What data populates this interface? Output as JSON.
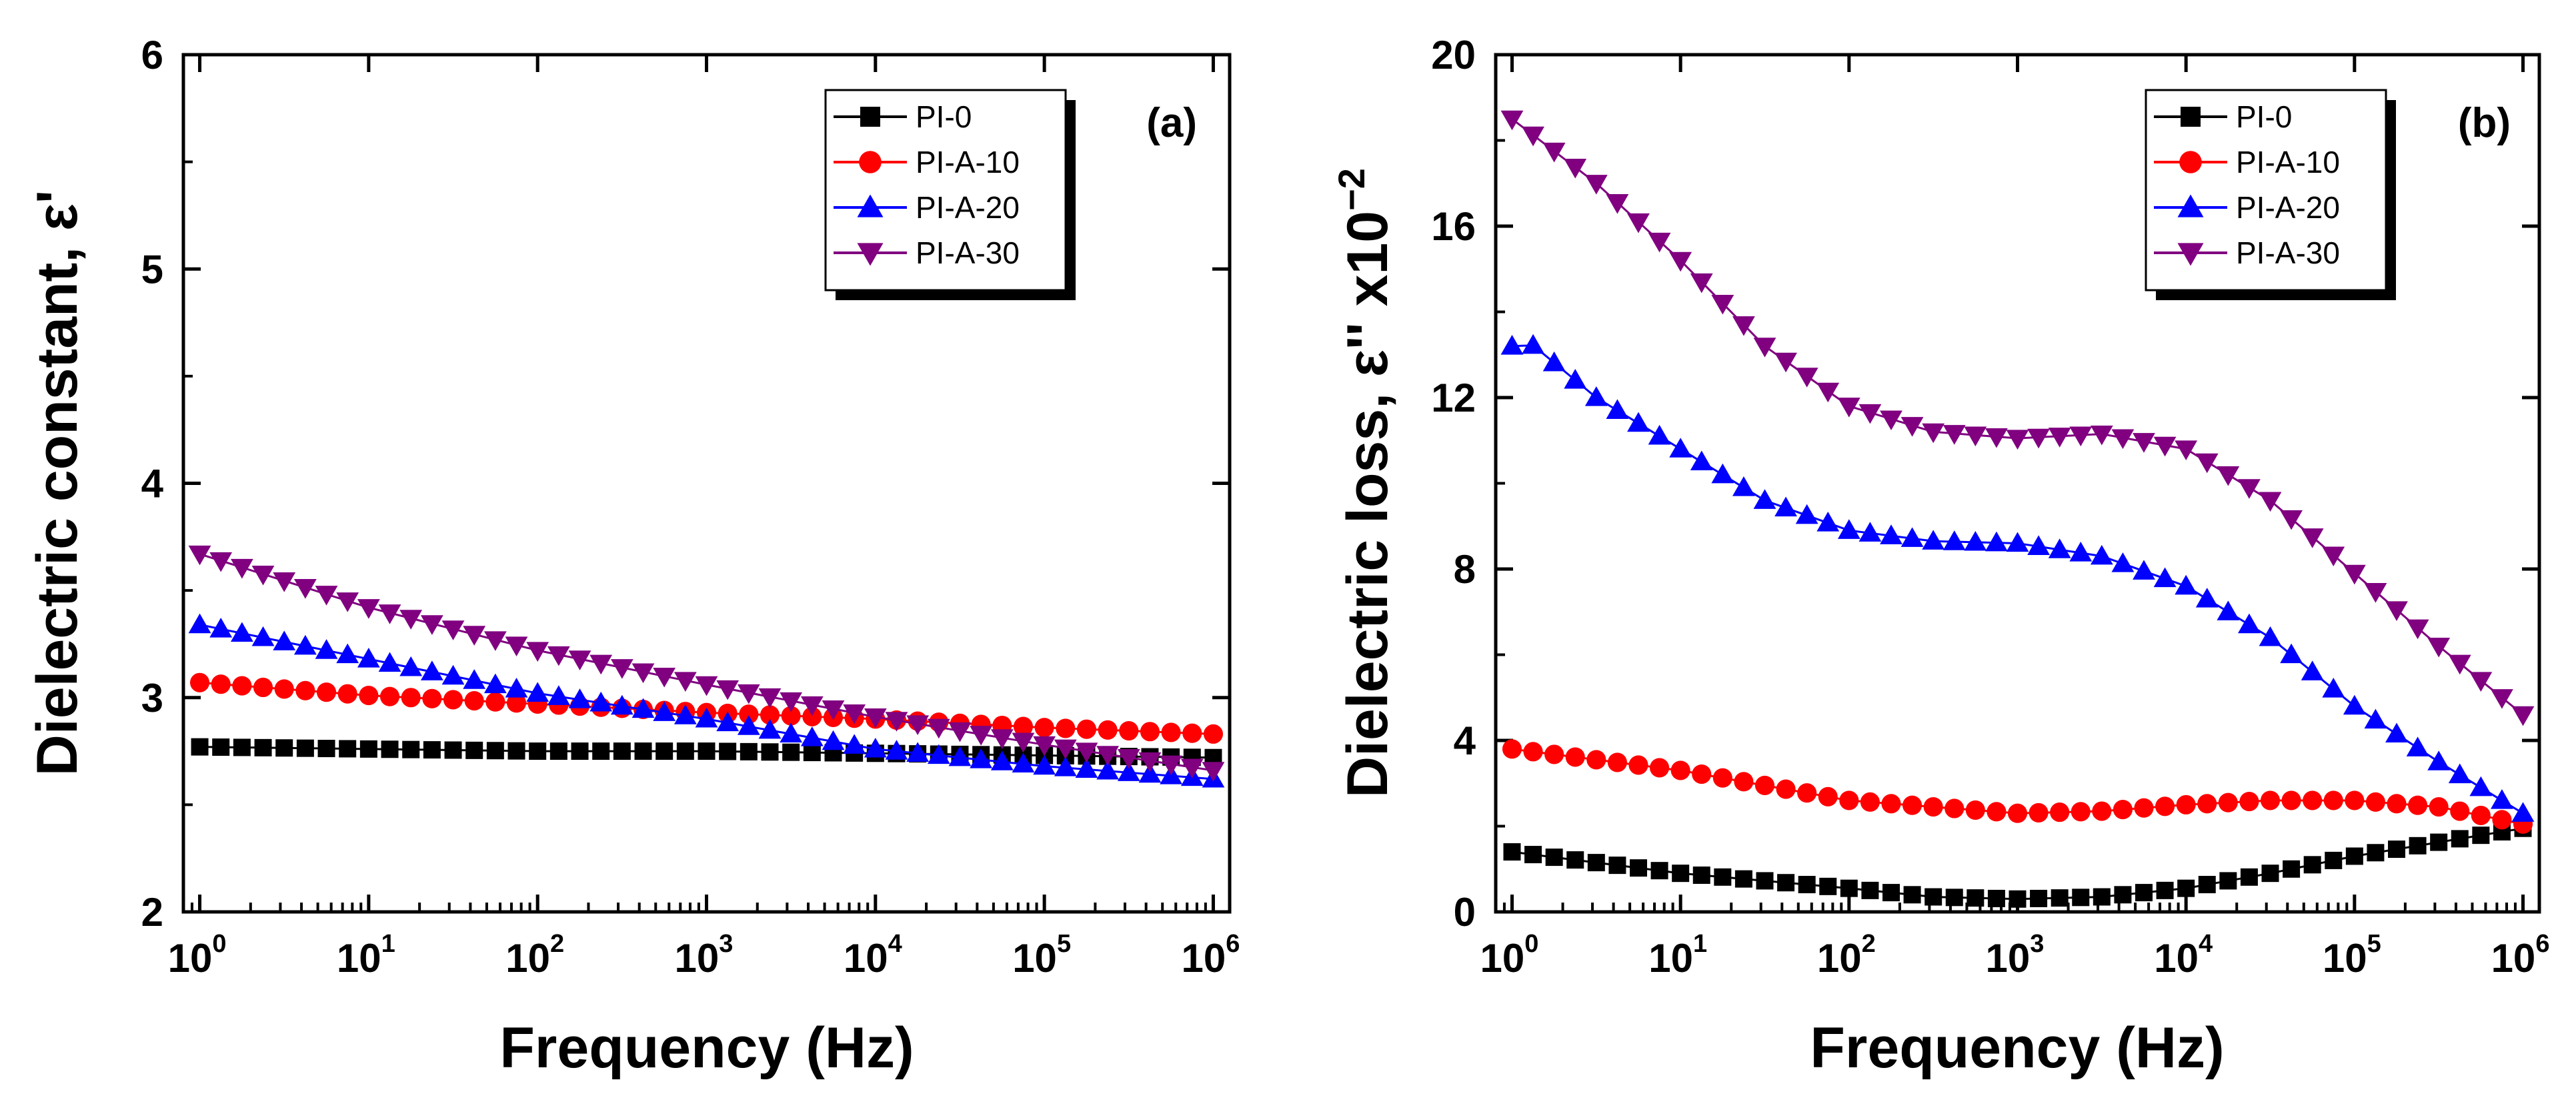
{
  "chart_data": [
    {
      "type": "line",
      "panel_label": "(a)",
      "xlabel": "Frequency (Hz)",
      "ylabel": "Dielectric constant, ε'",
      "xscale": "log10",
      "xlim": [
        0.8,
        1250000
      ],
      "ylim": [
        2,
        6
      ],
      "yticks": [
        "2",
        "3",
        "4",
        "5",
        "6"
      ],
      "xticks": [
        {
          "base": "10",
          "exp": "0"
        },
        {
          "base": "10",
          "exp": "1"
        },
        {
          "base": "10",
          "exp": "2"
        },
        {
          "base": "10",
          "exp": "3"
        },
        {
          "base": "10",
          "exp": "4"
        },
        {
          "base": "10",
          "exp": "5"
        },
        {
          "base": "10",
          "exp": "6"
        }
      ],
      "legend_position": "top-right",
      "n_points": 49,
      "series": [
        {
          "name": "PI-0",
          "color": "#000000",
          "marker": "square",
          "anchors": [
            [
              0,
              2.77
            ],
            [
              1,
              2.76
            ],
            [
              2,
              2.75
            ],
            [
              3,
              2.75
            ],
            [
              4,
              2.74
            ],
            [
              5,
              2.73
            ],
            [
              6,
              2.72
            ]
          ]
        },
        {
          "name": "PI-A-10",
          "color": "#ff0000",
          "marker": "circle",
          "anchors": [
            [
              0,
              3.07
            ],
            [
              1,
              3.01
            ],
            [
              2,
              2.97
            ],
            [
              3,
              2.93
            ],
            [
              4,
              2.9
            ],
            [
              5,
              2.86
            ],
            [
              6,
              2.83
            ]
          ]
        },
        {
          "name": "PI-A-20",
          "color": "#0000ff",
          "marker": "triangle-up",
          "anchors": [
            [
              0,
              3.34
            ],
            [
              1,
              3.18
            ],
            [
              2,
              3.02
            ],
            [
              3,
              2.9
            ],
            [
              4,
              2.76
            ],
            [
              5,
              2.68
            ],
            [
              6,
              2.62
            ]
          ]
        },
        {
          "name": "PI-A-30",
          "color": "#800080",
          "marker": "triangle-down",
          "anchors": [
            [
              0,
              3.67
            ],
            [
              1,
              3.42
            ],
            [
              2,
              3.22
            ],
            [
              3,
              3.06
            ],
            [
              4,
              2.91
            ],
            [
              5,
              2.78
            ],
            [
              6,
              2.66
            ]
          ]
        }
      ]
    },
    {
      "type": "line",
      "panel_label": "(b)",
      "xlabel": "Frequency (Hz)",
      "ylabel": "Dielectric loss, ε'' x10",
      "ylabel_exp": "−2",
      "xscale": "log10",
      "xlim": [
        0.8,
        1250000
      ],
      "ylim": [
        0,
        20
      ],
      "yticks": [
        "0",
        "4",
        "8",
        "12",
        "16",
        "20"
      ],
      "xticks": [
        {
          "base": "10",
          "exp": "0"
        },
        {
          "base": "10",
          "exp": "1"
        },
        {
          "base": "10",
          "exp": "2"
        },
        {
          "base": "10",
          "exp": "3"
        },
        {
          "base": "10",
          "exp": "4"
        },
        {
          "base": "10",
          "exp": "5"
        },
        {
          "base": "10",
          "exp": "6"
        }
      ],
      "legend_position": "top-right",
      "n_points": 49,
      "series": [
        {
          "name": "PI-0",
          "color": "#000000",
          "marker": "square",
          "anchors": [
            [
              0,
              1.4
            ],
            [
              1,
              0.9
            ],
            [
              2,
              0.55
            ],
            [
              2.5,
              0.35
            ],
            [
              3,
              0.3
            ],
            [
              3.5,
              0.35
            ],
            [
              4,
              0.55
            ],
            [
              4.5,
              0.9
            ],
            [
              5,
              1.3
            ],
            [
              6,
              1.95
            ]
          ]
        },
        {
          "name": "PI-A-10",
          "color": "#ff0000",
          "marker": "circle",
          "anchors": [
            [
              0,
              3.8
            ],
            [
              1,
              3.3
            ],
            [
              2,
              2.6
            ],
            [
              3,
              2.3
            ],
            [
              3.5,
              2.35
            ],
            [
              4,
              2.5
            ],
            [
              4.5,
              2.6
            ],
            [
              5,
              2.6
            ],
            [
              5.5,
              2.45
            ],
            [
              6,
              2.05
            ]
          ]
        },
        {
          "name": "PI-A-20",
          "color": "#0000ff",
          "marker": "triangle-up",
          "anchors": [
            [
              0,
              13.2
            ],
            [
              0.1,
              13.3
            ],
            [
              0.5,
              12.0
            ],
            [
              1,
              10.8
            ],
            [
              1.5,
              9.6
            ],
            [
              2,
              8.9
            ],
            [
              2.5,
              8.65
            ],
            [
              3,
              8.6
            ],
            [
              3.5,
              8.3
            ],
            [
              4,
              7.6
            ],
            [
              4.5,
              6.4
            ],
            [
              5,
              4.8
            ],
            [
              5.5,
              3.5
            ],
            [
              6,
              2.3
            ]
          ]
        },
        {
          "name": "PI-A-30",
          "color": "#800080",
          "marker": "triangle-down",
          "anchors": [
            [
              0,
              18.5
            ],
            [
              0.5,
              17.0
            ],
            [
              1,
              15.2
            ],
            [
              1.5,
              13.2
            ],
            [
              2,
              11.8
            ],
            [
              2.5,
              11.2
            ],
            [
              3,
              11.05
            ],
            [
              3.5,
              11.15
            ],
            [
              4,
              10.8
            ],
            [
              4.5,
              9.6
            ],
            [
              5,
              7.9
            ],
            [
              5.5,
              6.2
            ],
            [
              6,
              4.6
            ]
          ]
        }
      ]
    }
  ]
}
